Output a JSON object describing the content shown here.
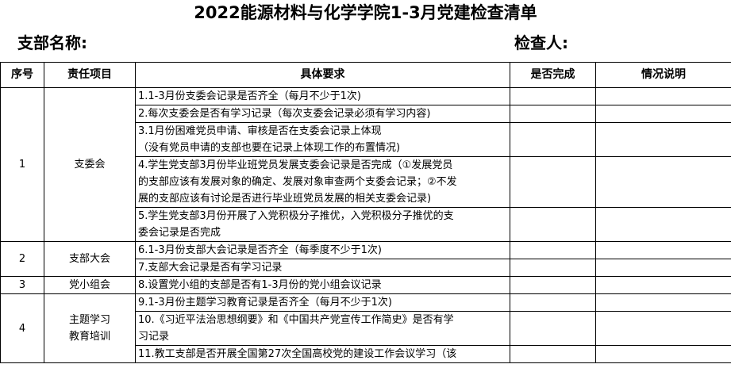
{
  "title": "2022能源材料与化学学院1-3月党建检查清单",
  "branch_label": "支部名称:",
  "inspector_label": "检查人:",
  "headers": [
    "序号",
    "责任项目",
    "具体要求",
    "是否完成",
    "情况说明"
  ],
  "groups": [
    {
      "no": "1",
      "item": "支委会",
      "rows": [
        [
          "1.1-3月份支委会记录是否齐全（每月不少于1次)"
        ],
        [
          "2.每次支委会是否有学习记录（每次支委会记录必须有学习内容)"
        ],
        [
          "3.1月份困难党员申请、审核是否在支委会记录上体现",
          "（没有党员申请的支部也要在记录上体现工作的布置情况)"
        ],
        [
          "4.学生党支部3月份毕业班党员发展支委会记录是否完成（①发展党员",
          "的支部应该有发展对象的确定、发展对象审查两个支委会记录；②不发",
          "展的支部应该有讨论是否进行毕业班党员发展的相关支委会记录)"
        ],
        [
          "5.学生党支部3月份开展了入党积极分子推优，入党积极分子推优的支",
          "委会记录是否完成"
        ]
      ]
    },
    {
      "no": "2",
      "item": "支部大会",
      "rows": [
        [
          "6.1-3月份支部大会记录是否齐全（每季度不少于1次)"
        ],
        [
          "7.支部大会记录是否有学习记录"
        ]
      ]
    },
    {
      "no": "3",
      "item": "党小组会",
      "rows": [
        [
          "8.设置党小组的支部是否有1-3月份的党小组会议记录"
        ]
      ]
    },
    {
      "no": "4",
      "item": "主题学习\n教育培训",
      "rows": [
        [
          "9.1-3月份主题学习教育记录是否齐全（每月不少于1次)"
        ],
        [
          "10.《习近平法治思想纲要》和《中国共产党宣传工作简史》是否有学",
          "习记录"
        ],
        [
          "11.教工支部是否开展全国第27次全国高校党的建设工作会议学习（该"
        ]
      ]
    }
  ]
}
